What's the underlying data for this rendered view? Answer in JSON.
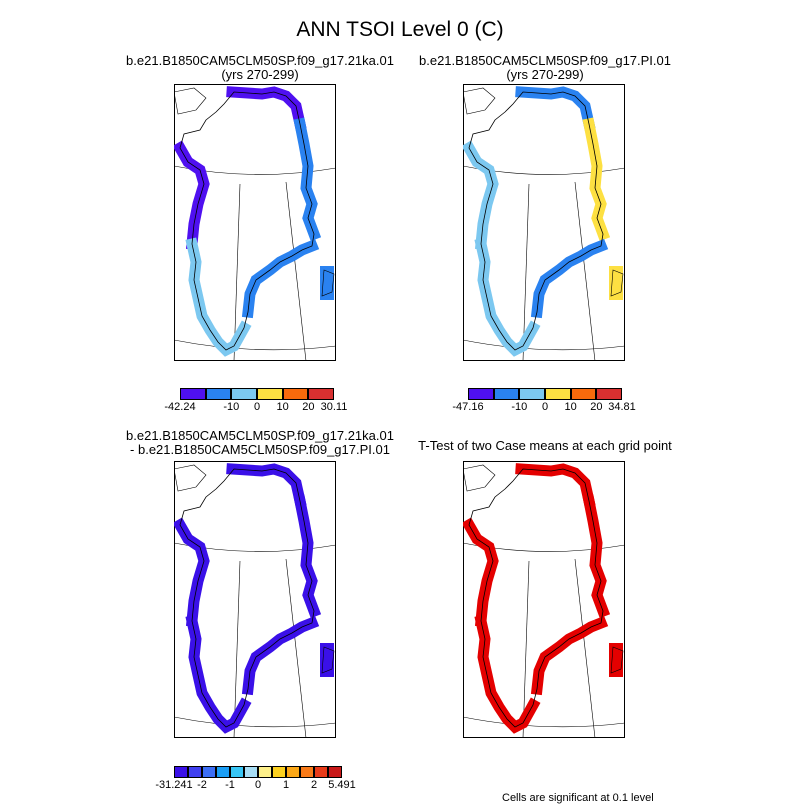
{
  "page": {
    "main_title": "ANN TSOI Level 0 (C)",
    "footnote": "Cells are significant at 0.1 level"
  },
  "palettes": {
    "six": [
      "#4f10f0",
      "#2a82f0",
      "#7cc8f0",
      "#fde042",
      "#f86a0c",
      "#d83030"
    ],
    "twelve": [
      "#3a10e8",
      "#4040f0",
      "#3c6ef5",
      "#1a9ef5",
      "#38c6f5",
      "#a8def5",
      "#fef08a",
      "#fcd020",
      "#fca818",
      "#f87a18",
      "#e83a18",
      "#c81818"
    ],
    "ttest": "#e40000",
    "outline": "#000000"
  },
  "chart_data": [
    {
      "type": "heatmap",
      "title": "b.e21.B1850CAM5CLM50SP.f09_g17.21ka.01",
      "subtitle": "(yrs 270-299)",
      "colorbar": {
        "palette": "six",
        "labels": [
          "-42.24",
          "-10",
          "0",
          "10",
          "20",
          "30.11"
        ],
        "label_positions": [
          0,
          2,
          3,
          4,
          5,
          6
        ]
      },
      "coast_fills": [
        "six-0",
        "six-0",
        "six-1",
        "six-1",
        "six-2"
      ]
    },
    {
      "type": "heatmap",
      "title": "b.e21.B1850CAM5CLM50SP.f09_g17.PI.01",
      "subtitle": "(yrs 270-299)",
      "colorbar": {
        "palette": "six",
        "labels": [
          "-47.16",
          "-10",
          "0",
          "10",
          "20",
          "34.81"
        ],
        "label_positions": [
          0,
          2,
          3,
          4,
          5,
          6
        ]
      },
      "coast_fills": [
        "six-1",
        "six-2",
        "six-3",
        "six-1",
        "six-2"
      ]
    },
    {
      "type": "heatmap",
      "title": "b.e21.B1850CAM5CLM50SP.f09_g17.21ka.01",
      "subtitle": "- b.e21.B1850CAM5CLM50SP.f09_g17.PI.01",
      "colorbar": {
        "palette": "twelve",
        "labels": [
          "-31.241",
          "-2",
          "-1",
          "0",
          "1",
          "2",
          "5.491"
        ],
        "label_positions": [
          0,
          2,
          4,
          6,
          8,
          10,
          12
        ]
      },
      "coast_fills": [
        "twelve-0",
        "twelve-0",
        "twelve-0",
        "twelve-0",
        "twelve-0"
      ]
    },
    {
      "type": "heatmap",
      "title": "T-Test of two Case means at each grid point",
      "subtitle": "",
      "colorbar": null,
      "coast_fills": [
        "ttest",
        "ttest",
        "ttest",
        "ttest",
        "ttest"
      ]
    }
  ]
}
